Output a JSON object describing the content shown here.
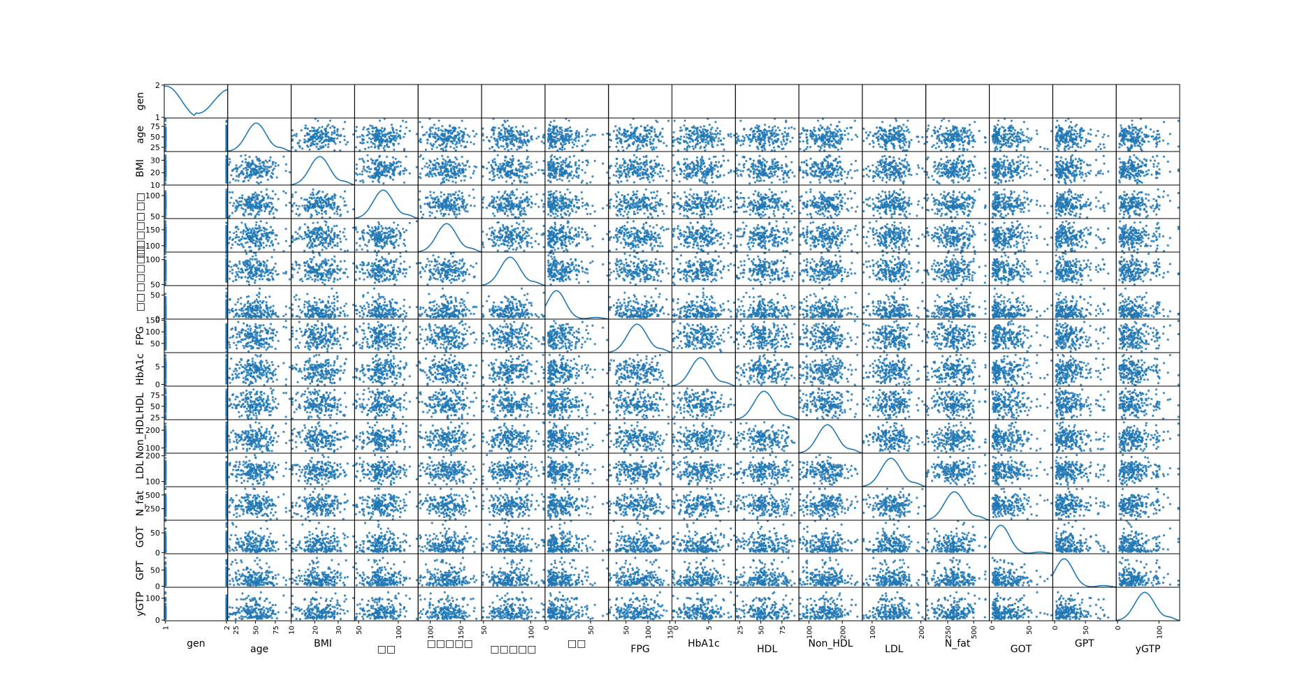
{
  "chart_data": {
    "type": "scatter",
    "subtype": "scatter-matrix",
    "diagonal": "kde",
    "title": "",
    "variables": [
      {
        "name": "gen",
        "label": "gen",
        "range": [
          0.98,
          2.02
        ],
        "ticks": [
          {
            "v": 1,
            "t": "1"
          },
          {
            "v": 2,
            "t": "2"
          }
        ]
      },
      {
        "name": "age",
        "label": "age",
        "range": [
          15,
          95
        ],
        "ticks": [
          {
            "v": 25,
            "t": "25"
          },
          {
            "v": 50,
            "t": "50"
          },
          {
            "v": 75,
            "t": "75"
          }
        ]
      },
      {
        "name": "BMI",
        "label": "BMI",
        "range": [
          10,
          37
        ],
        "ticks": [
          {
            "v": 10,
            "t": "10"
          },
          {
            "v": 20,
            "t": "20"
          },
          {
            "v": 30,
            "t": "30"
          }
        ]
      },
      {
        "name": "v4",
        "label": "□□",
        "range": [
          45,
          125
        ],
        "ticks": [
          {
            "v": 50,
            "t": "50"
          },
          {
            "v": 100,
            "t": "100"
          }
        ]
      },
      {
        "name": "v5",
        "label": "□□□□□",
        "range": [
          80,
          185
        ],
        "ticks": [
          {
            "v": 100,
            "t": "100"
          },
          {
            "v": 150,
            "t": "150"
          }
        ]
      },
      {
        "name": "v6",
        "label": "□□□□□",
        "range": [
          48,
          115
        ],
        "ticks": [
          {
            "v": 50,
            "t": "50"
          },
          {
            "v": 100,
            "t": "100"
          }
        ]
      },
      {
        "name": "v7",
        "label": "□□",
        "range": [
          -1,
          70
        ],
        "ticks": [
          {
            "v": 0,
            "t": "0"
          },
          {
            "v": 50,
            "t": "50"
          }
        ]
      },
      {
        "name": "FPG",
        "label": "FPG",
        "range": [
          10,
          155
        ],
        "ticks": [
          {
            "v": 50,
            "t": "50"
          },
          {
            "v": 100,
            "t": "100"
          },
          {
            "v": 150,
            "t": "150"
          }
        ]
      },
      {
        "name": "HbA1c",
        "label": "HbA1c",
        "range": [
          -0.5,
          9
        ],
        "ticks": [
          {
            "v": 0,
            "t": "0"
          },
          {
            "v": 5,
            "t": "5"
          }
        ]
      },
      {
        "name": "HDL",
        "label": "HDL",
        "range": [
          20,
          95
        ],
        "ticks": [
          {
            "v": 25,
            "t": "25"
          },
          {
            "v": 50,
            "t": "50"
          },
          {
            "v": 75,
            "t": "75"
          }
        ]
      },
      {
        "name": "Non_HDL",
        "label": "Non_HDL",
        "range": [
          70,
          260
        ],
        "ticks": [
          {
            "v": 100,
            "t": "100"
          },
          {
            "v": 200,
            "t": "200"
          }
        ]
      },
      {
        "name": "LDL",
        "label": "LDL",
        "range": [
          80,
          210
        ],
        "ticks": [
          {
            "v": 100,
            "t": "100"
          },
          {
            "v": 200,
            "t": "200"
          }
        ]
      },
      {
        "name": "N_fat",
        "label": "N_fat",
        "range": [
          40,
          650
        ],
        "ticks": [
          {
            "v": 250,
            "t": "250"
          },
          {
            "v": 500,
            "t": "500"
          }
        ]
      },
      {
        "name": "GOT",
        "label": "GOT",
        "range": [
          -3,
          82
        ],
        "ticks": [
          {
            "v": 0,
            "t": "0"
          },
          {
            "v": 50,
            "t": "50"
          }
        ]
      },
      {
        "name": "GPT",
        "label": "GPT",
        "range": [
          -3,
          100
        ],
        "ticks": [
          {
            "v": 0,
            "t": "0"
          },
          {
            "v": 50,
            "t": "50"
          }
        ]
      },
      {
        "name": "yGTP",
        "label": "yGTP",
        "range": [
          -3,
          150
        ],
        "ticks": [
          {
            "v": 0,
            "t": "0"
          },
          {
            "v": 100,
            "t": "100"
          }
        ]
      }
    ],
    "point_color": "#1f77b4",
    "grid": false,
    "legend": "none"
  }
}
